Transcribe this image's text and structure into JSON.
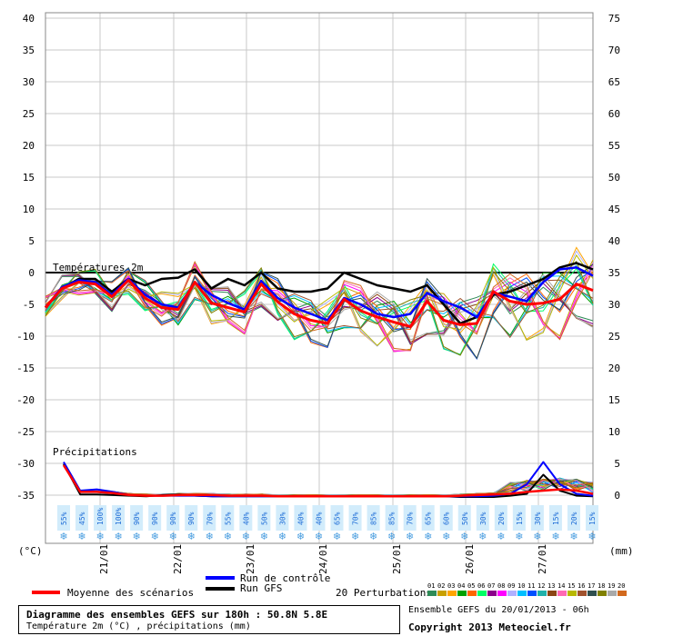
{
  "chart_data": {
    "type": "line",
    "left_axis": {
      "unit_label": "(°C)",
      "ticks": [
        40,
        35,
        30,
        25,
        20,
        15,
        10,
        5,
        0,
        -5,
        -10,
        -15,
        -20,
        -25,
        -30,
        -35
      ],
      "range": [
        -35,
        40
      ]
    },
    "right_axis": {
      "unit_label": "(mm)",
      "ticks": [
        75,
        70,
        65,
        60,
        55,
        50,
        45,
        40,
        35,
        30,
        25,
        20,
        15,
        10,
        5,
        0
      ]
    },
    "x_dates": [
      "21/01",
      "22/01",
      "23/01",
      "24/01",
      "25/01",
      "26/01",
      "27/01"
    ],
    "section_labels": {
      "temperature": "Températures 2m",
      "precipitation": "Précipitations"
    },
    "zero_line_temperature": 0,
    "snow_probabilities": [
      "55%",
      "45%",
      "100%",
      "100%",
      "90%",
      "90%",
      "90%",
      "90%",
      "70%",
      "55%",
      "40%",
      "50%",
      "30%",
      "40%",
      "40%",
      "65%",
      "70%",
      "85%",
      "85%",
      "70%",
      "65%",
      "60%",
      "50%",
      "30%",
      "20%",
      "15%",
      "30%",
      "15%",
      "20%",
      "15%"
    ],
    "temperature_series": {
      "mean": [
        -5.5,
        -2.5,
        -1.5,
        -1.8,
        -3.8,
        -1.2,
        -4.0,
        -5.5,
        -5.8,
        -1.5,
        -4.8,
        -5.5,
        -6.2,
        -1.8,
        -4.6,
        -6.5,
        -7.5,
        -8.0,
        -4.2,
        -6.0,
        -7.0,
        -7.8,
        -8.5,
        -4.5,
        -7.5,
        -8.2,
        -8.0,
        -3.0,
        -4.5,
        -5.0,
        -4.8,
        -4.2,
        -1.8,
        -2.8
      ],
      "control": [
        -5.5,
        -2.3,
        -1.2,
        -1.5,
        -3.5,
        -1.0,
        -3.5,
        -5.0,
        -5.5,
        -1.5,
        -3.5,
        -4.8,
        -5.8,
        -1.3,
        -4.0,
        -5.5,
        -6.5,
        -7.5,
        -4.0,
        -5.0,
        -6.5,
        -7.0,
        -6.5,
        -3.2,
        -4.5,
        -5.5,
        -7.0,
        -3.2,
        -3.8,
        -4.5,
        -1.5,
        0.5,
        0.8,
        -0.5
      ],
      "gfs": [
        -5.5,
        -2.5,
        -1.0,
        -1.0,
        -3.0,
        -1.0,
        -2.0,
        -1.0,
        -0.8,
        0.5,
        -2.5,
        -1.0,
        -2.0,
        0.0,
        -2.5,
        -3.0,
        -3.0,
        -2.5,
        0.0,
        -1.0,
        -2.0,
        -2.5,
        -3.0,
        -2.0,
        -5.0,
        -8.0,
        -7.0,
        -3.5,
        -3.0,
        -2.0,
        -1.0,
        0.8,
        1.5,
        0.5
      ]
    },
    "perturbation_colors": [
      "#2e8b57",
      "#c8a000",
      "#ffa500",
      "#00a000",
      "#ff6600",
      "#00ff66",
      "#8b008b",
      "#ff00ff",
      "#b0b0ff",
      "#00bfff",
      "#0050ff",
      "#20b2aa",
      "#8b4513",
      "#ff69b4",
      "#b8b800",
      "#a0522d",
      "#2f4f4f",
      "#808000",
      "#a9a9a9",
      "#d2691e"
    ],
    "precipitation": {
      "mean": [
        5.0,
        0.8,
        0.8,
        0.6,
        0.3,
        0.2,
        0.2,
        0.3,
        0.3,
        0.3,
        0.2,
        0.2,
        0.2,
        0.1,
        0.1,
        0.1,
        0.1,
        0.1,
        0.1,
        0.1,
        0.1,
        0.1,
        0.1,
        0.1,
        0.2,
        0.3,
        0.4,
        0.5,
        0.8,
        1.0,
        1.2,
        1.0,
        0.5
      ],
      "control": [
        5.5,
        1.0,
        1.2,
        0.8,
        0.3,
        0.2,
        0.2,
        0.2,
        0.2,
        0.1,
        0.1,
        0.1,
        0.1,
        0.1,
        0.1,
        0.1,
        0.1,
        0.1,
        0.1,
        0.1,
        0.1,
        0.1,
        0.1,
        0.1,
        0.1,
        0.1,
        0.2,
        0.5,
        2.0,
        5.5,
        2.0,
        0.5,
        0.2
      ],
      "gfs": [
        5.2,
        0.4,
        0.4,
        0.3,
        0.2,
        0.1,
        0.3,
        0.4,
        0.2,
        0.1,
        0.1,
        0.1,
        0.1,
        0.1,
        0.1,
        0.1,
        0.1,
        0.1,
        0.1,
        0.1,
        0.1,
        0.1,
        0.1,
        0.1,
        0.0,
        0.0,
        0.0,
        0.2,
        0.5,
        3.5,
        1.0,
        0.2,
        0.1
      ]
    }
  },
  "legend": {
    "mean_label": "Moyenne des scénarios",
    "control_label": "Run de contrôle",
    "gfs_label": "Run GFS",
    "perturbations_label": "20 Perturbations",
    "perturbation_numbers": [
      "01",
      "02",
      "03",
      "04",
      "05",
      "06",
      "07",
      "08",
      "09",
      "10",
      "11",
      "12",
      "13",
      "14",
      "15",
      "16",
      "17",
      "18",
      "19",
      "20"
    ],
    "colors": {
      "mean": "#ff0000",
      "control": "#0000ff",
      "gfs": "#000000"
    }
  },
  "footer": {
    "title": "Diagramme des ensembles GEFS sur 180h : 50.8N 5.8E",
    "subtitle": "Température 2m (°C) , précipitations (mm)",
    "ensemble_info": "Ensemble GEFS du 20/01/2013 - 06h",
    "copyright": "Copyright 2013 Meteociel.fr"
  }
}
